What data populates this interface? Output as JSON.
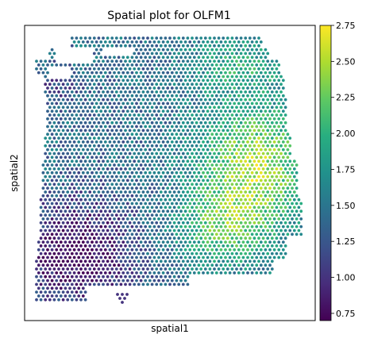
{
  "chart_data": {
    "type": "scatter",
    "title": "Spatial plot for OLFM1",
    "xlabel": "spatial1",
    "ylabel": "spatial2",
    "colormap": "viridis",
    "color_range": [
      0.7,
      2.75
    ],
    "colorbar_ticks": [
      "0.75",
      "1.00",
      "1.25",
      "1.50",
      "1.75",
      "2.00",
      "2.25",
      "2.50",
      "2.75"
    ],
    "colorbar_tick_values": [
      0.75,
      1.0,
      1.25,
      1.5,
      1.75,
      2.0,
      2.25,
      2.5,
      2.75
    ],
    "x_ticks": [],
    "y_ticks": [],
    "grid": false,
    "spot_layout": "hexagonal lattice of tissue spots; low expression (purple) concentrated lower-left, high expression (yellow-green) concentrated right-center"
  }
}
